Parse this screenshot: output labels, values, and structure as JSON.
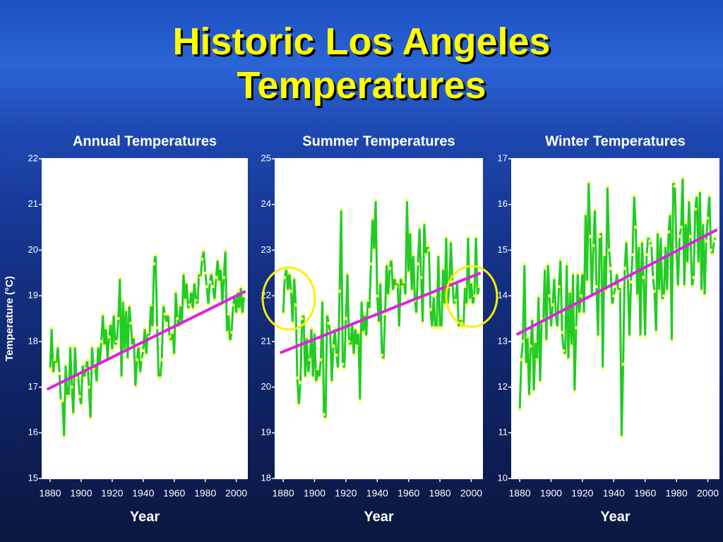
{
  "title": "Historic Los Angeles Temperatures",
  "chart_data": [
    {
      "type": "line",
      "title": "Annual Temperatures",
      "xlabel": "Year",
      "ylabel": "Temperature (°C)",
      "xlim": [
        1875,
        2007
      ],
      "xticks": [
        1880,
        1900,
        1920,
        1940,
        1960,
        1980,
        2000
      ],
      "ylim": [
        15,
        22
      ],
      "yticks": [
        15,
        16,
        17,
        18,
        19,
        20,
        21,
        22
      ],
      "series": [
        {
          "color": "#22cc22",
          "marker_color": "#ffff66",
          "x": [
            1880,
            1881,
            1882,
            1883,
            1884,
            1885,
            1886,
            1887,
            1888,
            1889,
            1890,
            1891,
            1892,
            1893,
            1894,
            1895,
            1896,
            1897,
            1898,
            1899,
            1900,
            1901,
            1902,
            1903,
            1904,
            1905,
            1906,
            1907,
            1908,
            1909,
            1910,
            1911,
            1912,
            1913,
            1914,
            1915,
            1916,
            1917,
            1918,
            1919,
            1920,
            1921,
            1922,
            1923,
            1924,
            1925,
            1926,
            1927,
            1928,
            1929,
            1930,
            1931,
            1932,
            1933,
            1934,
            1935,
            1936,
            1937,
            1938,
            1939,
            1940,
            1941,
            1942,
            1943,
            1944,
            1945,
            1946,
            1947,
            1948,
            1949,
            1950,
            1951,
            1952,
            1953,
            1954,
            1955,
            1956,
            1957,
            1958,
            1959,
            1960,
            1961,
            1962,
            1963,
            1964,
            1965,
            1966,
            1967,
            1968,
            1969,
            1970,
            1971,
            1972,
            1973,
            1974,
            1975,
            1976,
            1977,
            1978,
            1979,
            1980,
            1981,
            1982,
            1983,
            1984,
            1985,
            1986,
            1987,
            1988,
            1989,
            1990,
            1991,
            1992,
            1993,
            1994,
            1995,
            1996,
            1997,
            1998,
            1999,
            2000,
            2001,
            2002,
            2003,
            2004,
            2005
          ],
          "values": [
            17.4,
            18.3,
            17.3,
            17.6,
            17.5,
            17.9,
            17.3,
            16.7,
            16.7,
            15.9,
            17.5,
            16.8,
            16.8,
            17.9,
            17.0,
            16.4,
            17.9,
            17.2,
            17.3,
            16.8,
            16.6,
            17.5,
            17.2,
            17.4,
            17.6,
            17.0,
            16.3,
            17.9,
            17.4,
            17.5,
            17.1,
            17.9,
            17.5,
            18.0,
            18.6,
            17.9,
            18.3,
            17.6,
            18.1,
            18.4,
            17.8,
            18.6,
            17.9,
            18.0,
            18.5,
            19.4,
            17.2,
            18.9,
            17.8,
            18.7,
            17.6,
            18.8,
            18.4,
            17.9,
            18.1,
            17.0,
            17.6,
            17.9,
            17.3,
            17.6,
            17.8,
            18.3,
            17.7,
            18.2,
            18.1,
            18.8,
            18.3,
            19.7,
            19.9,
            18.3,
            17.2,
            17.2,
            17.6,
            18.8,
            18.6,
            18.4,
            18.6,
            18.1,
            18.0,
            18.2,
            17.7,
            19.1,
            18.5,
            18.3,
            18.8,
            18.4,
            19.5,
            18.9,
            19.3,
            18.7,
            18.8,
            19.1,
            18.7,
            19.3,
            18.9,
            18.8,
            19.5,
            19.4,
            19.8,
            20.0,
            19.5,
            19.2,
            18.8,
            19.3,
            19.5,
            19.2,
            18.9,
            19.4,
            19.8,
            19.3,
            19.6,
            18.8,
            19.4,
            20.0,
            18.2,
            18.6,
            18.0,
            18.2,
            18.8,
            19.0,
            18.6,
            19.1,
            18.7,
            19.2,
            18.6,
            19.0
          ]
        },
        {
          "color": "#dd22dd",
          "x": [
            1878,
            2006
          ],
          "values": [
            16.95,
            19.1
          ]
        }
      ]
    },
    {
      "type": "line",
      "title": "Summer Temperatures",
      "xlabel": "Year",
      "xlim": [
        1875,
        2007
      ],
      "xticks": [
        1880,
        1900,
        1920,
        1940,
        1960,
        1980,
        2000
      ],
      "ylim": [
        18,
        25
      ],
      "yticks": [
        18,
        19,
        20,
        21,
        22,
        23,
        24,
        25
      ],
      "series": [
        {
          "color": "#22cc22",
          "marker_color": "#ffff66",
          "x": [
            1880,
            1881,
            1882,
            1883,
            1884,
            1885,
            1886,
            1887,
            1888,
            1889,
            1890,
            1891,
            1892,
            1893,
            1894,
            1895,
            1896,
            1897,
            1898,
            1899,
            1900,
            1901,
            1902,
            1903,
            1904,
            1905,
            1906,
            1907,
            1908,
            1909,
            1910,
            1911,
            1912,
            1913,
            1914,
            1915,
            1916,
            1917,
            1918,
            1919,
            1920,
            1921,
            1922,
            1923,
            1924,
            1925,
            1926,
            1927,
            1928,
            1929,
            1930,
            1931,
            1932,
            1933,
            1934,
            1935,
            1936,
            1937,
            1938,
            1939,
            1940,
            1941,
            1942,
            1943,
            1944,
            1945,
            1946,
            1947,
            1948,
            1949,
            1950,
            1951,
            1952,
            1953,
            1954,
            1955,
            1956,
            1957,
            1958,
            1959,
            1960,
            1961,
            1962,
            1963,
            1964,
            1965,
            1966,
            1967,
            1968,
            1969,
            1970,
            1971,
            1972,
            1973,
            1974,
            1975,
            1976,
            1977,
            1978,
            1979,
            1980,
            1981,
            1982,
            1983,
            1984,
            1985,
            1986,
            1987,
            1988,
            1989,
            1990,
            1991,
            1992,
            1993,
            1994,
            1995,
            1996,
            1997,
            1998,
            1999,
            2000,
            2001,
            2002,
            2003,
            2004,
            2005
          ],
          "values": [
            21.6,
            22.4,
            22.6,
            22.1,
            22.5,
            22.1,
            21.4,
            22.4,
            21.8,
            20.2,
            19.6,
            20.1,
            21.5,
            21.6,
            20.2,
            21.1,
            20.3,
            20.6,
            21.3,
            20.2,
            21.2,
            20.1,
            20.4,
            20.2,
            20.6,
            21.9,
            19.4,
            19.3,
            21.6,
            21.4,
            21.2,
            20.1,
            20.9,
            21.3,
            20.7,
            20.4,
            22.1,
            23.9,
            20.5,
            20.4,
            21.5,
            22.5,
            21.0,
            20.9,
            21.4,
            20.7,
            21.3,
            20.9,
            21.2,
            19.7,
            21.9,
            21.2,
            21.6,
            21.1,
            21.9,
            21.7,
            22.7,
            23.7,
            23.0,
            24.1,
            22.0,
            21.4,
            22.3,
            20.7,
            20.6,
            21.6,
            22.7,
            22.0,
            22.6,
            22.8,
            22.1,
            22.4,
            22.2,
            22.3,
            21.3,
            22.4,
            22.2,
            22.3,
            22.0,
            24.1,
            22.5,
            23.4,
            22.1,
            22.9,
            21.9,
            21.6,
            22.7,
            23.5,
            22.4,
            21.4,
            23.6,
            22.9,
            23.1,
            23.0,
            21.7,
            21.3,
            22.0,
            21.3,
            21.3,
            22.9,
            21.3,
            21.3,
            22.6,
            21.8,
            23.3,
            21.8,
            22.2,
            23.2,
            22.3,
            21.8,
            21.9,
            22.3,
            21.3,
            21.5,
            21.4,
            21.3,
            22.2,
            21.8,
            23.3,
            21.9,
            22.3,
            21.8,
            22.0,
            23.3,
            22.0,
            22.2
          ]
        },
        {
          "color": "#dd22dd",
          "x": [
            1878,
            2006
          ],
          "values": [
            20.75,
            22.5
          ]
        }
      ]
    },
    {
      "type": "line",
      "title": "Winter Temperatures",
      "xlabel": "Year",
      "xlim": [
        1875,
        2007
      ],
      "xticks": [
        1880,
        1900,
        1920,
        1940,
        1960,
        1980,
        2000
      ],
      "ylim": [
        10,
        17
      ],
      "yticks": [
        10,
        11,
        12,
        13,
        14,
        15,
        16,
        17
      ],
      "series": [
        {
          "color": "#22cc22",
          "marker_color": "#ffff66",
          "x": [
            1880,
            1881,
            1882,
            1883,
            1884,
            1885,
            1886,
            1887,
            1888,
            1889,
            1890,
            1891,
            1892,
            1893,
            1894,
            1895,
            1896,
            1897,
            1898,
            1899,
            1900,
            1901,
            1902,
            1903,
            1904,
            1905,
            1906,
            1907,
            1908,
            1909,
            1910,
            1911,
            1912,
            1913,
            1914,
            1915,
            1916,
            1917,
            1918,
            1919,
            1920,
            1921,
            1922,
            1923,
            1924,
            1925,
            1926,
            1927,
            1928,
            1929,
            1930,
            1931,
            1932,
            1933,
            1934,
            1935,
            1936,
            1937,
            1938,
            1939,
            1940,
            1941,
            1942,
            1943,
            1944,
            1945,
            1946,
            1947,
            1948,
            1949,
            1950,
            1951,
            1952,
            1953,
            1954,
            1955,
            1956,
            1957,
            1958,
            1959,
            1960,
            1961,
            1962,
            1963,
            1964,
            1965,
            1966,
            1967,
            1968,
            1969,
            1970,
            1971,
            1972,
            1973,
            1974,
            1975,
            1976,
            1977,
            1978,
            1979,
            1980,
            1981,
            1982,
            1983,
            1984,
            1985,
            1986,
            1987,
            1988,
            1989,
            1990,
            1991,
            1992,
            1993,
            1994,
            1995,
            1996,
            1997,
            1998,
            1999,
            2000,
            2001,
            2002,
            2003,
            2004,
            2005
          ],
          "values": [
            11.5,
            12.6,
            13.0,
            14.7,
            12.5,
            13.1,
            11.8,
            12.9,
            13.5,
            11.9,
            13.0,
            12.6,
            14.0,
            12.1,
            13.5,
            13.4,
            14.6,
            13.0,
            14.7,
            14.0,
            13.3,
            13.8,
            14.4,
            13.6,
            13.3,
            14.2,
            14.8,
            13.2,
            12.8,
            12.7,
            14.7,
            12.6,
            14.1,
            12.9,
            14.5,
            11.9,
            13.3,
            14.5,
            13.6,
            14.0,
            14.5,
            13.6,
            15.8,
            14.3,
            16.5,
            15.3,
            14.0,
            15.1,
            15.9,
            14.2,
            13.1,
            15.3,
            15.4,
            12.4,
            14.9,
            14.1,
            16.4,
            15.0,
            14.6,
            13.8,
            14.0,
            14.2,
            14.5,
            14.1,
            14.2,
            10.9,
            12.5,
            14.6,
            15.2,
            14.4,
            13.1,
            14.3,
            14.9,
            16.2,
            15.5,
            14.0,
            15.1,
            13.1,
            15.2,
            14.4,
            13.1,
            14.9,
            15.3,
            15.2,
            15.1,
            14.4,
            14.1,
            13.2,
            15.4,
            14.1,
            15.3,
            13.9,
            14.0,
            15.1,
            14.1,
            15.4,
            15.8,
            13.0,
            16.5,
            16.4,
            15.0,
            14.2,
            15.3,
            15.5,
            16.6,
            14.2,
            15.6,
            14.7,
            16.1,
            15.3,
            14.2,
            14.4,
            15.9,
            16.2,
            14.7,
            16.3,
            14.1,
            15.6,
            14.0,
            15.2,
            15.7,
            16.2,
            15.0,
            14.9,
            15.2,
            15.3
          ]
        },
        {
          "color": "#dd22dd",
          "x": [
            1878,
            2006
          ],
          "values": [
            13.15,
            15.45
          ]
        }
      ]
    }
  ]
}
